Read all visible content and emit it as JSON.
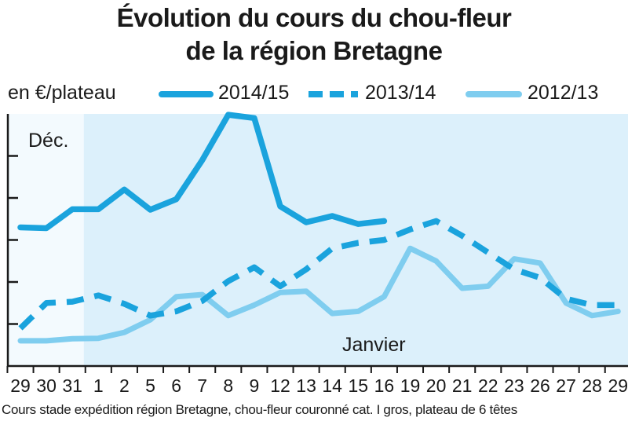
{
  "chart_data": {
    "type": "line",
    "title_lines": [
      "Évolution du cours du chou-fleur",
      "de la région Bretagne"
    ],
    "ylabel": "en €/plateau",
    "categories": [
      "29",
      "30",
      "31",
      "1",
      "2",
      "5",
      "6",
      "7",
      "8",
      "9",
      "12",
      "13",
      "14",
      "15",
      "16",
      "19",
      "20",
      "21",
      "22",
      "23",
      "26",
      "27",
      "28",
      "29"
    ],
    "annotations": {
      "dec": "Déc.",
      "jan": "Janvier"
    },
    "footnote": "Cours stade expédition région Bretagne, chou-fleur couronné cat. I gros, plateau de 6 têtes",
    "ylim": [
      0,
      6
    ],
    "y_ticks": [
      1,
      2,
      3,
      4,
      5
    ],
    "grid": false,
    "legend_position": "top",
    "series": [
      {
        "name": "2014/15",
        "style": "solid",
        "color": "#1aa3dd",
        "values": [
          3.3,
          3.28,
          3.73,
          3.73,
          4.2,
          3.72,
          3.97,
          4.9,
          5.98,
          5.9,
          3.8,
          3.42,
          3.57,
          3.38,
          3.45,
          null,
          null,
          null,
          null,
          null,
          null,
          null,
          null,
          null
        ]
      },
      {
        "name": "2013/14",
        "style": "dashed",
        "color": "#1aa3dd",
        "values": [
          0.9,
          1.5,
          1.53,
          1.68,
          1.48,
          1.2,
          1.3,
          1.55,
          2.02,
          2.35,
          1.9,
          2.3,
          2.8,
          2.93,
          3.0,
          3.25,
          3.45,
          3.1,
          2.7,
          2.3,
          2.1,
          1.6,
          1.45,
          1.45
        ]
      },
      {
        "name": "2012/13",
        "style": "solid",
        "color": "#7fcdef",
        "values": [
          0.6,
          0.6,
          0.65,
          0.66,
          0.8,
          1.1,
          1.65,
          1.7,
          1.2,
          1.45,
          1.75,
          1.78,
          1.25,
          1.3,
          1.65,
          2.8,
          2.5,
          1.85,
          1.9,
          2.55,
          2.45,
          1.5,
          1.2,
          1.3
        ]
      }
    ]
  }
}
